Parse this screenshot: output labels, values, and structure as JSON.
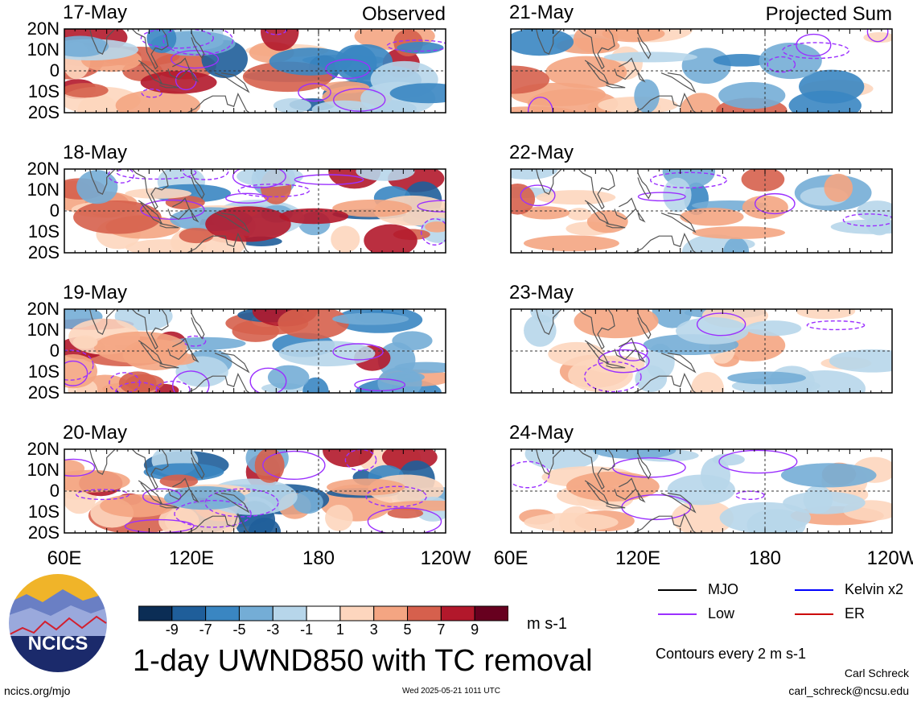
{
  "chart_data": {
    "type": "heatmap",
    "title": "1-day UWND850 with TC removal",
    "variable": "850 hPa zonal wind anomaly",
    "units": "m s-1",
    "x_tick_labels": [
      "60E",
      "120E",
      "180",
      "120W"
    ],
    "y_tick_labels": [
      "20N",
      "10N",
      "0",
      "10S",
      "20S"
    ],
    "panels": [
      {
        "date": "17-May",
        "tag": "Observed",
        "column": "left"
      },
      {
        "date": "18-May",
        "tag": "",
        "column": "left"
      },
      {
        "date": "19-May",
        "tag": "",
        "column": "left"
      },
      {
        "date": "20-May",
        "tag": "",
        "column": "left"
      },
      {
        "date": "21-May",
        "tag": "Projected Sum",
        "column": "right"
      },
      {
        "date": "22-May",
        "tag": "",
        "column": "right"
      },
      {
        "date": "23-May",
        "tag": "",
        "column": "right"
      },
      {
        "date": "24-May",
        "tag": "",
        "column": "right"
      }
    ],
    "colorbar": {
      "labels": [
        "-9",
        "-7",
        "-5",
        "-3",
        "-1",
        "1",
        "3",
        "5",
        "7",
        "9"
      ],
      "colors": [
        "#0b2d55",
        "#1f5e9a",
        "#3a86c2",
        "#74add6",
        "#b7d6ea",
        "#ffffff",
        "#fdd6be",
        "#f4a582",
        "#d6604d",
        "#b2182b",
        "#67001f"
      ]
    },
    "legend": [
      {
        "label": "MJO",
        "color": "#000000"
      },
      {
        "label": "Kelvin x2",
        "color": "#0000ff"
      },
      {
        "label": "Low",
        "color": "#9b30ff"
      },
      {
        "label": "ER",
        "color": "#cc0000"
      }
    ]
  },
  "contour_note": "Contours every 2 m s-1",
  "footer": {
    "org_logo_text": "NCICS",
    "url": "ncics.org/mjo",
    "timestamp": "Wed 2025-05-21 1011 UTC",
    "author": "Carl Schreck",
    "email": "carl_schreck@ncsu.edu"
  }
}
